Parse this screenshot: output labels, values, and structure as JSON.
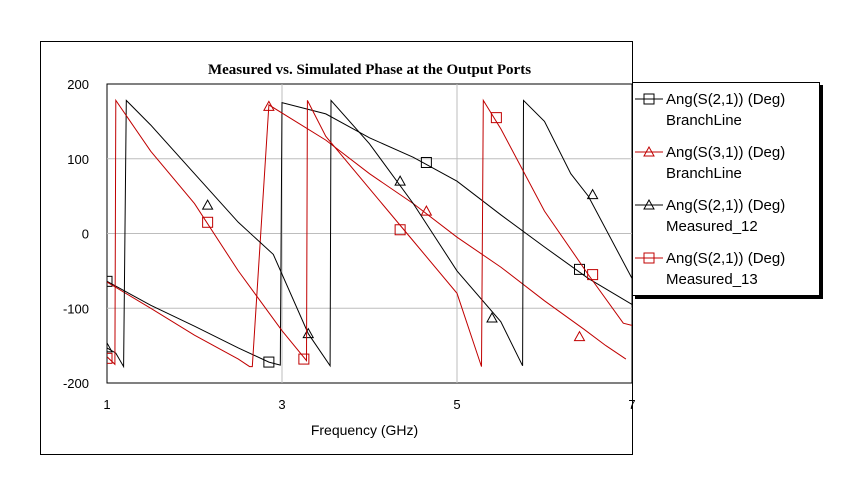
{
  "chart_data": {
    "type": "line",
    "title": "Measured vs. Simulated Phase at the Output Ports",
    "xlabel": "Frequency (GHz)",
    "ylabel": "",
    "xlim": [
      1,
      7
    ],
    "ylim": [
      -200,
      200
    ],
    "xticks": [
      "1",
      "3",
      "5",
      "7"
    ],
    "yticks": [
      "200",
      "100",
      "0",
      "-100",
      "-200"
    ],
    "grid": true,
    "legend_position": "right",
    "series": [
      {
        "name": "Ang(S(2,1)) (Deg)",
        "name2": "BranchLine",
        "color": "#000000",
        "marker": "square",
        "points": [
          [
            1.0,
            -64
          ],
          [
            1.5,
            -96
          ],
          [
            2.0,
            -124
          ],
          [
            2.5,
            -153
          ],
          [
            2.85,
            -172
          ],
          [
            2.98,
            -176
          ],
          [
            3.0,
            175
          ],
          [
            3.5,
            160
          ],
          [
            4.0,
            128
          ],
          [
            4.5,
            102
          ],
          [
            5.0,
            70
          ],
          [
            5.5,
            25
          ],
          [
            6.0,
            -18
          ],
          [
            6.5,
            -60
          ],
          [
            7.0,
            -95
          ]
        ],
        "marker_points": [
          [
            1.0,
            -64
          ],
          [
            2.85,
            -172
          ],
          [
            4.65,
            95
          ],
          [
            6.4,
            -48
          ]
        ]
      },
      {
        "name": "Ang(S(3,1)) (Deg)",
        "name2": "BranchLine",
        "color": "#c00000",
        "marker": "triangle",
        "points": [
          [
            1.0,
            -65
          ],
          [
            1.5,
            -100
          ],
          [
            2.0,
            -136
          ],
          [
            2.5,
            -168
          ],
          [
            2.63,
            -178
          ],
          [
            2.66,
            -178
          ],
          [
            2.85,
            172
          ],
          [
            3.5,
            125
          ],
          [
            4.0,
            80
          ],
          [
            4.5,
            40
          ],
          [
            5.0,
            -5
          ],
          [
            5.5,
            -45
          ],
          [
            6.0,
            -90
          ],
          [
            6.45,
            -128
          ],
          [
            6.7,
            -150
          ],
          [
            6.93,
            -168
          ]
        ],
        "marker_points": [
          [
            2.85,
            170
          ],
          [
            4.65,
            30
          ],
          [
            6.4,
            -138
          ]
        ]
      },
      {
        "name": "Ang(S(2,1)) (Deg)",
        "name2": "Measured_12",
        "color": "#000000",
        "marker": "triangle",
        "points": [
          [
            1.0,
            -153
          ],
          [
            1.1,
            -160
          ],
          [
            1.19,
            -178
          ],
          [
            1.22,
            178
          ],
          [
            1.5,
            145
          ],
          [
            2.0,
            80
          ],
          [
            2.5,
            15
          ],
          [
            2.9,
            -28
          ],
          [
            3.3,
            -134
          ],
          [
            3.55,
            -177
          ],
          [
            3.56,
            178
          ],
          [
            4.0,
            120
          ],
          [
            4.5,
            40
          ],
          [
            5.0,
            -50
          ],
          [
            5.5,
            -118
          ],
          [
            5.75,
            -177
          ],
          [
            5.76,
            178
          ],
          [
            6.0,
            150
          ],
          [
            6.3,
            80
          ],
          [
            6.5,
            50
          ],
          [
            7.0,
            -60
          ]
        ],
        "marker_points": [
          [
            1.0,
            -153
          ],
          [
            2.15,
            38
          ],
          [
            3.3,
            -134
          ],
          [
            4.35,
            70
          ],
          [
            5.4,
            -113
          ],
          [
            6.55,
            52
          ]
        ]
      },
      {
        "name": "Ang(S(2,1)) (Deg)",
        "name2": "Measured_13",
        "color": "#c00000",
        "marker": "square",
        "points": [
          [
            1.0,
            -165
          ],
          [
            1.09,
            -175
          ],
          [
            1.1,
            178
          ],
          [
            1.5,
            110
          ],
          [
            2.0,
            40
          ],
          [
            2.5,
            -50
          ],
          [
            3.0,
            -130
          ],
          [
            3.28,
            -170
          ],
          [
            3.29,
            178
          ],
          [
            3.5,
            130
          ],
          [
            4.0,
            60
          ],
          [
            4.5,
            -10
          ],
          [
            5.0,
            -80
          ],
          [
            5.28,
            -178
          ],
          [
            5.3,
            178
          ],
          [
            5.5,
            140
          ],
          [
            6.0,
            30
          ],
          [
            6.5,
            -55
          ],
          [
            6.9,
            -120
          ],
          [
            7.0,
            -123
          ]
        ],
        "marker_points": [
          [
            1.0,
            -167
          ],
          [
            2.15,
            15
          ],
          [
            3.25,
            -168
          ],
          [
            4.35,
            5
          ],
          [
            5.45,
            155
          ],
          [
            6.55,
            -55
          ]
        ]
      }
    ]
  }
}
